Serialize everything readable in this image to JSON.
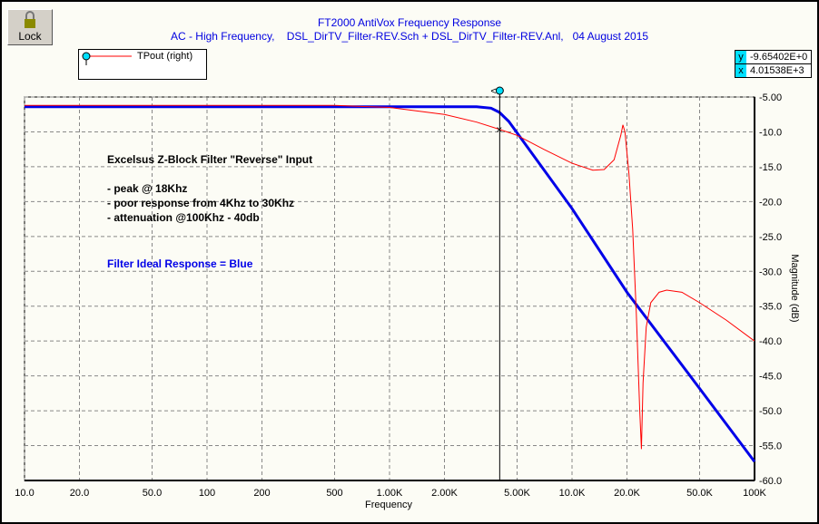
{
  "toolbar": {
    "lock_label": "Lock"
  },
  "readout": {
    "y_label": "y",
    "y_value": "-9.65402E+0",
    "x_label": "x",
    "x_value": "4.01538E+3"
  },
  "cursor_label": "<>",
  "chart_data": {
    "type": "line",
    "title": "FT2000 AntiVox Frequency Response",
    "subtitle": "AC - High Frequency,    DSL_DirTV_Filter-REV.Sch + DSL_DirTV_Filter-REV.Anl,   04 August 2015",
    "xlabel": "Frequency",
    "ylabel": "Magnitude  (dB)",
    "xscale": "log",
    "xlim": [
      10,
      100000
    ],
    "ylim": [
      -60,
      -5
    ],
    "xticks": [
      10,
      20,
      50,
      100,
      200,
      500,
      1000,
      2000,
      5000,
      10000,
      20000,
      50000,
      100000
    ],
    "xtick_labels": [
      "10.0",
      "20.0",
      "50.0",
      "100",
      "200",
      "500",
      "1.00K",
      "2.00K",
      "5.00K",
      "10.0K",
      "20.0K",
      "50.0K",
      "100K"
    ],
    "yticks": [
      -5,
      -10,
      -15,
      -20,
      -25,
      -30,
      -35,
      -40,
      -45,
      -50,
      -55,
      -60
    ],
    "ytick_labels": [
      "-5.00",
      "-10.0",
      "-15.0",
      "-20.0",
      "-25.0",
      "-30.0",
      "-35.0",
      "-40.0",
      "-45.0",
      "-50.0",
      "-55.0",
      "-60.0"
    ],
    "grid": true,
    "legend_position": "top-left",
    "cursor": {
      "x": 4015.38,
      "y": -9.65402
    },
    "series": [
      {
        "name": "TPout (right)",
        "color": "#ff0000",
        "x": [
          10,
          500,
          1000,
          2000,
          3000,
          4015,
          5000,
          7000,
          10000,
          13000,
          15000,
          17000,
          18500,
          19000,
          19500,
          20500,
          21500,
          22500,
          23500,
          24000,
          24500,
          25500,
          27000,
          30000,
          33000,
          40000,
          50000,
          70000,
          100000
        ],
        "y": [
          -6.2,
          -6.2,
          -6.5,
          -7.5,
          -8.6,
          -9.65,
          -10.5,
          -12.5,
          -14.5,
          -15.5,
          -15.4,
          -14,
          -10.5,
          -9,
          -10,
          -16,
          -24,
          -36,
          -50,
          -55.5,
          -46,
          -38,
          -34.5,
          -33,
          -32.7,
          -33,
          -34.5,
          -37,
          -40
        ]
      },
      {
        "name": "Filter Ideal",
        "color": "#0000e8",
        "x": [
          10,
          1000,
          3000,
          3600,
          4000,
          4500,
          10000,
          20000,
          50000,
          100000
        ],
        "y": [
          -6.4,
          -6.4,
          -6.4,
          -6.6,
          -7.2,
          -8.5,
          -21,
          -33,
          -46.8,
          -57.3
        ]
      }
    ],
    "annotations": [
      "Excelsus Z-Block Filter \"Reverse\" Input",
      "- peak @ 18Khz",
      "- poor response from 4Khz to 30Khz",
      "- attenuation @100Khz - 40db",
      "Filter Ideal Response = Blue"
    ]
  }
}
